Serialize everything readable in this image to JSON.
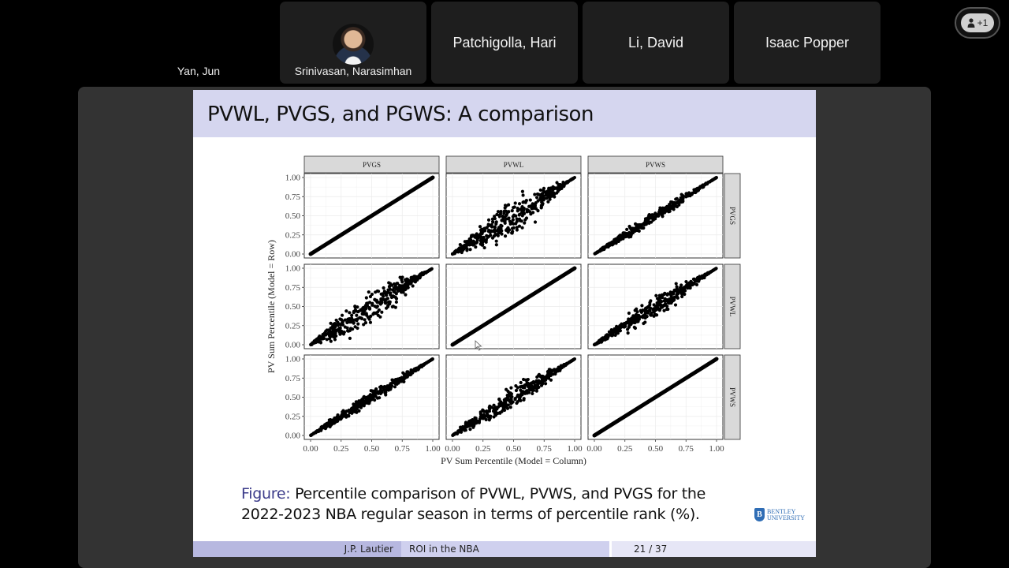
{
  "meeting": {
    "participants": [
      {
        "name": "Yan, Jun",
        "video": false
      },
      {
        "name": "Srinivasan, Narasimhan",
        "has_avatar": true
      },
      {
        "name": "Patchigolla, Hari"
      },
      {
        "name": "Li, David"
      },
      {
        "name": "Isaac Popper"
      }
    ],
    "more_participants": {
      "icon": "person-icon",
      "label": "+1"
    }
  },
  "slide": {
    "title": "PVWL, PVGS, and PGWS: A comparison",
    "caption_label": "Figure:",
    "caption_line1": " Percentile comparison of PVWL, PVWS, and PVGS for the",
    "caption_line2": "2022-2023 NBA regular season in terms of percentile rank (%).",
    "logo": {
      "line1": "BENTLEY",
      "line2": "UNIVERSITY",
      "mark": "B"
    },
    "footer": {
      "author": "J.P. Lautier",
      "short_title": "ROI in the NBA",
      "page": "21 / 37"
    },
    "colors": {
      "title_bar": "#d5d6ef",
      "footer_left": "#b7b8e0",
      "footer_mid": "#cfd0ee",
      "footer_right": "#e6e6f6",
      "figure_label": "#3b3b8a"
    }
  },
  "chart_data": {
    "type": "scatter",
    "layout": "3x3 facet grid (scatterplot matrix)",
    "column_strips": [
      "PVGS",
      "PVWL",
      "PVWS"
    ],
    "row_strips": [
      "PVGS",
      "PVWL",
      "PVWS"
    ],
    "xlabel": "PV Sum Percentile (Model = Column)",
    "ylabel": "PV Sum Percentile (Model = Row)",
    "x_ticks": [
      "0.00",
      "0.25",
      "0.50",
      "0.75",
      "1.00"
    ],
    "y_ticks": [
      "0.00",
      "0.25",
      "0.50",
      "0.75",
      "1.00"
    ],
    "xlim": [
      0,
      1
    ],
    "ylim": [
      0,
      1
    ],
    "grid": true,
    "panels": [
      {
        "row": "PVGS",
        "col": "PVGS",
        "pattern": "identity line y=x"
      },
      {
        "row": "PVGS",
        "col": "PVWL",
        "pattern": "positive, wide scatter"
      },
      {
        "row": "PVGS",
        "col": "PVWS",
        "pattern": "positive, tight scatter"
      },
      {
        "row": "PVWL",
        "col": "PVGS",
        "pattern": "positive, wide scatter"
      },
      {
        "row": "PVWL",
        "col": "PVWL",
        "pattern": "identity line y=x"
      },
      {
        "row": "PVWL",
        "col": "PVWS",
        "pattern": "positive, moderate scatter"
      },
      {
        "row": "PVWS",
        "col": "PVGS",
        "pattern": "positive, tight scatter"
      },
      {
        "row": "PVWS",
        "col": "PVWL",
        "pattern": "positive, moderate scatter"
      },
      {
        "row": "PVWS",
        "col": "PVWS",
        "pattern": "identity line y=x"
      }
    ]
  }
}
